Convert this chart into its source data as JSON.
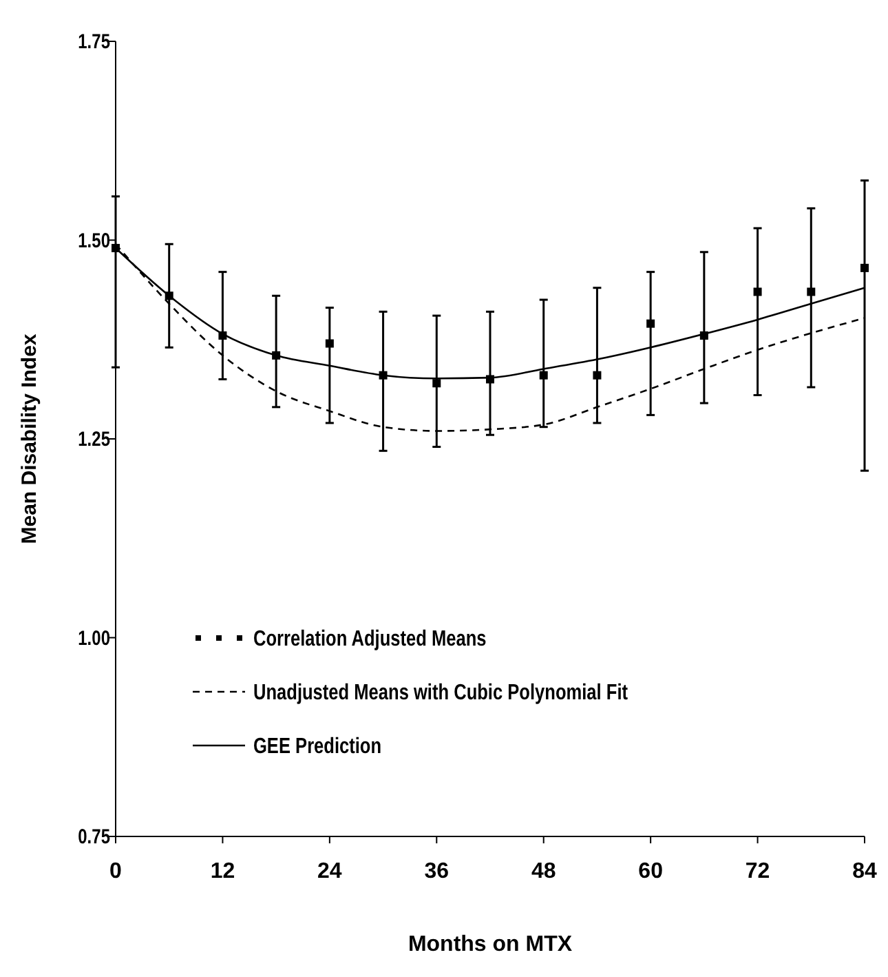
{
  "chart_data": {
    "type": "scatter",
    "xlabel": "Months on MTX",
    "ylabel": "Mean Disability Index",
    "xlim": [
      0,
      84
    ],
    "ylim": [
      0.75,
      1.75
    ],
    "xticks": [
      0,
      12,
      24,
      36,
      48,
      60,
      72,
      84
    ],
    "yticks": [
      {
        "value": 0.75,
        "label": "0.75"
      },
      {
        "value": 1,
        "label": "1.00"
      },
      {
        "value": 1.25,
        "label": "1.25"
      },
      {
        "value": 1.5,
        "label": "1.50"
      },
      {
        "value": 1.75,
        "label": "1.75"
      }
    ],
    "grid": false,
    "legend": "bottom left",
    "x": [
      0,
      6,
      12,
      18,
      24,
      30,
      36,
      42,
      48,
      54,
      60,
      66,
      72,
      78,
      84
    ],
    "series": [
      {
        "name": "Correlation Adjusted Means",
        "marker": "square",
        "color": "#000000",
        "values": [
          1.49,
          1.43,
          1.38,
          1.355,
          1.37,
          1.33,
          1.32,
          1.325,
          1.33,
          1.33,
          1.395,
          1.38,
          1.435,
          1.435,
          1.465
        ],
        "errors": [
          [
            1.34,
            1.555
          ],
          [
            1.365,
            1.495
          ],
          [
            1.325,
            1.46
          ],
          [
            1.29,
            1.43
          ],
          [
            1.27,
            1.415
          ],
          [
            1.235,
            1.41
          ],
          [
            1.24,
            1.405
          ],
          [
            1.255,
            1.41
          ],
          [
            1.265,
            1.425
          ],
          [
            1.27,
            1.44
          ],
          [
            1.28,
            1.46
          ],
          [
            1.295,
            1.485
          ],
          [
            1.305,
            1.515
          ],
          [
            1.315,
            1.54
          ],
          [
            1.21,
            1.575
          ]
        ]
      },
      {
        "name": "Unadjusted Means with Cubic Polynomial Fit",
        "type": "line",
        "line_style": "dashed",
        "color": "#000000",
        "values": [
          1.495,
          1.42,
          1.355,
          1.31,
          1.285,
          1.265,
          1.26,
          1.262,
          1.268,
          1.29,
          1.313,
          1.338,
          1.362,
          1.383,
          1.402
        ]
      },
      {
        "name": "GEE Prediction",
        "type": "line",
        "line_style": "solid",
        "color": "#000000",
        "values": [
          1.49,
          1.43,
          1.382,
          1.355,
          1.342,
          1.33,
          1.326,
          1.327,
          1.338,
          1.35,
          1.365,
          1.382,
          1.4,
          1.42,
          1.44
        ]
      }
    ]
  }
}
